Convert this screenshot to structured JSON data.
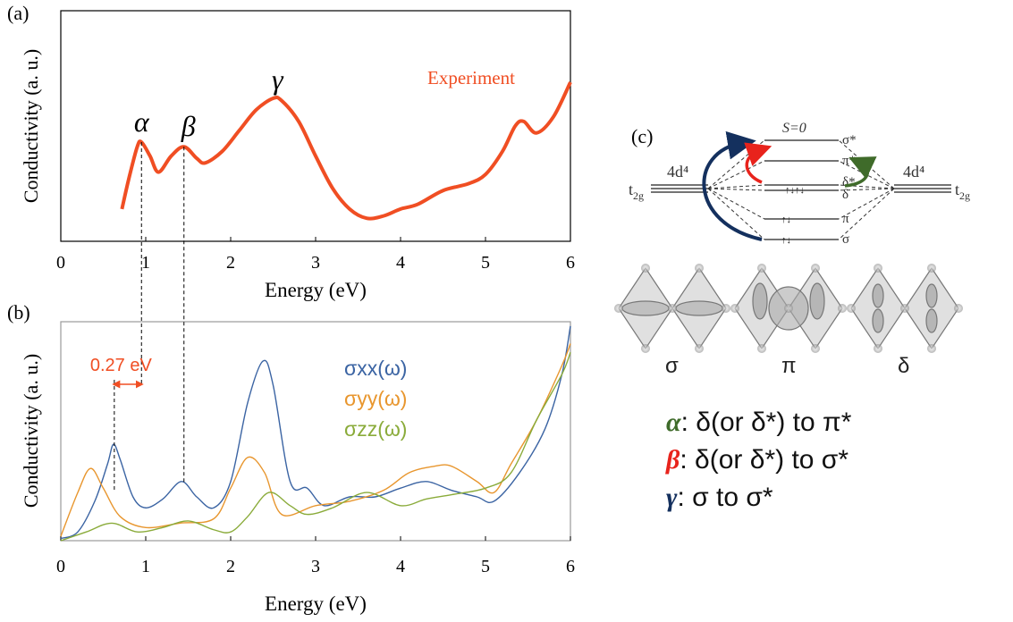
{
  "chart_data": [
    {
      "type": "line",
      "panel": "(a)",
      "ylabel": "Conductivity (a. u.)",
      "xlabel": "Energy (eV)",
      "xlim": [
        0,
        6
      ],
      "xticks": [
        0,
        1,
        2,
        3,
        4,
        5,
        6
      ],
      "ylim": [
        0,
        1
      ],
      "series": [
        {
          "name": "Experiment",
          "color": "#f04e23",
          "x": [
            0.72,
            0.8,
            0.9,
            0.95,
            1.05,
            1.15,
            1.3,
            1.45,
            1.6,
            1.7,
            1.9,
            2.1,
            2.3,
            2.5,
            2.6,
            2.8,
            3.0,
            3.2,
            3.4,
            3.6,
            3.8,
            4.0,
            4.2,
            4.5,
            4.8,
            5.0,
            5.2,
            5.35,
            5.45,
            5.6,
            5.8,
            6.0
          ],
          "values": [
            0.14,
            0.27,
            0.41,
            0.43,
            0.37,
            0.3,
            0.37,
            0.41,
            0.36,
            0.34,
            0.39,
            0.48,
            0.57,
            0.62,
            0.61,
            0.52,
            0.37,
            0.23,
            0.14,
            0.1,
            0.11,
            0.14,
            0.16,
            0.22,
            0.25,
            0.29,
            0.39,
            0.5,
            0.52,
            0.47,
            0.54,
            0.69
          ]
        }
      ],
      "annotations": [
        {
          "text": "α",
          "x": 0.95
        },
        {
          "text": "β",
          "x": 1.45
        },
        {
          "text": "γ",
          "x": 2.55
        }
      ]
    },
    {
      "type": "line",
      "panel": "(b)",
      "ylabel": "Conductivity (a. u.)",
      "xlabel": "Energy (eV)",
      "xlim": [
        0,
        6
      ],
      "xticks": [
        0,
        1,
        2,
        3,
        4,
        5,
        6
      ],
      "ylim": [
        0,
        1
      ],
      "series": [
        {
          "name": "σxx(ω)",
          "color": "#3b64a3",
          "x": [
            0,
            0.2,
            0.4,
            0.55,
            0.62,
            0.7,
            0.85,
            1.0,
            1.2,
            1.42,
            1.6,
            1.8,
            2.0,
            2.2,
            2.38,
            2.5,
            2.7,
            2.9,
            3.1,
            3.4,
            3.7,
            4.0,
            4.3,
            4.6,
            4.9,
            5.1,
            5.4,
            5.7,
            5.9,
            6.0
          ],
          "values": [
            0.01,
            0.04,
            0.18,
            0.35,
            0.44,
            0.37,
            0.2,
            0.15,
            0.19,
            0.27,
            0.2,
            0.15,
            0.27,
            0.63,
            0.82,
            0.71,
            0.27,
            0.24,
            0.16,
            0.2,
            0.2,
            0.24,
            0.27,
            0.23,
            0.2,
            0.18,
            0.31,
            0.51,
            0.76,
            0.98
          ]
        },
        {
          "name": "σyy(ω)",
          "color": "#e8962e",
          "x": [
            0,
            0.2,
            0.35,
            0.5,
            0.7,
            1.0,
            1.4,
            1.8,
            2.0,
            2.2,
            2.4,
            2.6,
            3.0,
            3.4,
            3.8,
            4.1,
            4.4,
            4.6,
            4.9,
            5.1,
            5.3,
            5.6,
            5.9,
            6.0
          ],
          "values": [
            0.02,
            0.22,
            0.33,
            0.24,
            0.11,
            0.06,
            0.08,
            0.1,
            0.24,
            0.38,
            0.31,
            0.12,
            0.16,
            0.18,
            0.23,
            0.31,
            0.34,
            0.34,
            0.27,
            0.22,
            0.35,
            0.55,
            0.8,
            0.9
          ]
        },
        {
          "name": "σzz(ω)",
          "color": "#8aab3a",
          "x": [
            0,
            0.3,
            0.6,
            0.9,
            1.2,
            1.5,
            1.8,
            2.0,
            2.2,
            2.45,
            2.7,
            2.9,
            3.2,
            3.6,
            4.0,
            4.3,
            4.6,
            5.0,
            5.3,
            5.6,
            5.9,
            6.0
          ],
          "values": [
            0.0,
            0.04,
            0.08,
            0.04,
            0.06,
            0.09,
            0.05,
            0.04,
            0.11,
            0.22,
            0.16,
            0.12,
            0.15,
            0.22,
            0.16,
            0.19,
            0.21,
            0.24,
            0.31,
            0.55,
            0.76,
            0.86
          ]
        }
      ],
      "annotations": [
        {
          "text": "0.27 eV",
          "x": 0.63
        }
      ]
    }
  ],
  "diagram": {
    "panel": "(c)",
    "spin": "S=0",
    "levels": [
      "σ*",
      "π*",
      "δ*",
      "δ",
      "π",
      "σ"
    ],
    "left": {
      "config": "4d⁴",
      "orbital": "t",
      "orbital_sub": "2g"
    },
    "right": {
      "config": "4d⁴",
      "orbital": "t",
      "orbital_sub": "2g"
    },
    "orbitals": [
      "σ",
      "π",
      "δ"
    ],
    "legend": [
      {
        "symbol": "α",
        "text": ": δ(or δ*) to π*",
        "color": "#3f6b2a"
      },
      {
        "symbol": "β",
        "text": ": δ(or δ*) to σ*",
        "color": "#e8231c"
      },
      {
        "symbol": "γ",
        "text": ": σ to σ*",
        "color": "#14305e"
      }
    ]
  }
}
